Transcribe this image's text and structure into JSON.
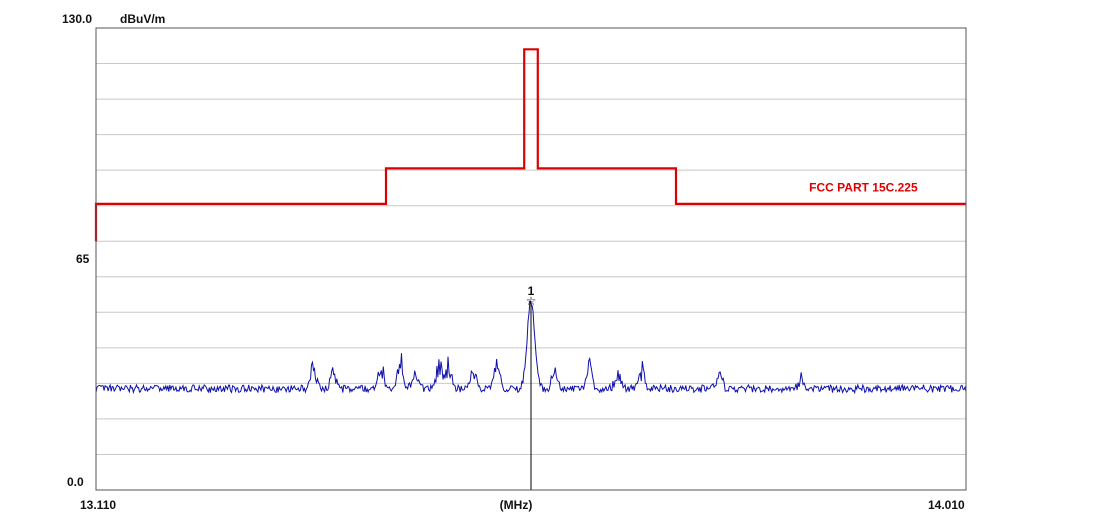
{
  "chart_data": {
    "type": "line",
    "ylabel": "dBuV/m",
    "xlabel": "(MHz)",
    "xlim": [
      13.11,
      14.01
    ],
    "ylim": [
      0.0,
      130.0
    ],
    "x_tick_labels": [
      "13.110",
      "14.010"
    ],
    "y_tick_labels": [
      "130.0",
      "65",
      "0.0"
    ],
    "y_ticks": [
      130.0,
      65,
      0.0
    ],
    "grid": true,
    "series": [
      {
        "name": "FCC PART 15C.225",
        "color": "#dd0000",
        "x": [
          13.11,
          13.11,
          13.41,
          13.41,
          13.553,
          13.553,
          13.567,
          13.567,
          13.71,
          13.71,
          14.01
        ],
        "y": [
          70.0,
          80.5,
          80.5,
          90.5,
          90.5,
          124.0,
          124.0,
          90.5,
          90.5,
          80.5,
          80.5
        ]
      },
      {
        "name": "",
        "color": "#1010aa",
        "peaks": [
          {
            "x": 13.335,
            "h": 6.0
          },
          {
            "x": 13.355,
            "h": 4.5
          },
          {
            "x": 13.405,
            "h": 6.5
          },
          {
            "x": 13.425,
            "h": 7.5
          },
          {
            "x": 13.44,
            "h": 5.5
          },
          {
            "x": 13.465,
            "h": 8.0
          },
          {
            "x": 13.475,
            "h": 7.5
          },
          {
            "x": 13.5,
            "h": 5.0
          },
          {
            "x": 13.525,
            "h": 7.0
          },
          {
            "x": 13.585,
            "h": 6.5
          },
          {
            "x": 13.62,
            "h": 6.5
          },
          {
            "x": 13.65,
            "h": 5.0
          },
          {
            "x": 13.675,
            "h": 5.5
          },
          {
            "x": 13.755,
            "h": 4.5
          },
          {
            "x": 13.84,
            "h": 3.0
          }
        ],
        "floor": 28.5,
        "peak_x": 13.56,
        "peak_y": 53.2
      }
    ],
    "markers": [
      {
        "label": "1",
        "x": 13.56,
        "y": 53.2
      }
    ],
    "annotations": [
      {
        "text": "FCC PART 15C.225",
        "x": 13.96,
        "y": 84.0
      }
    ]
  }
}
